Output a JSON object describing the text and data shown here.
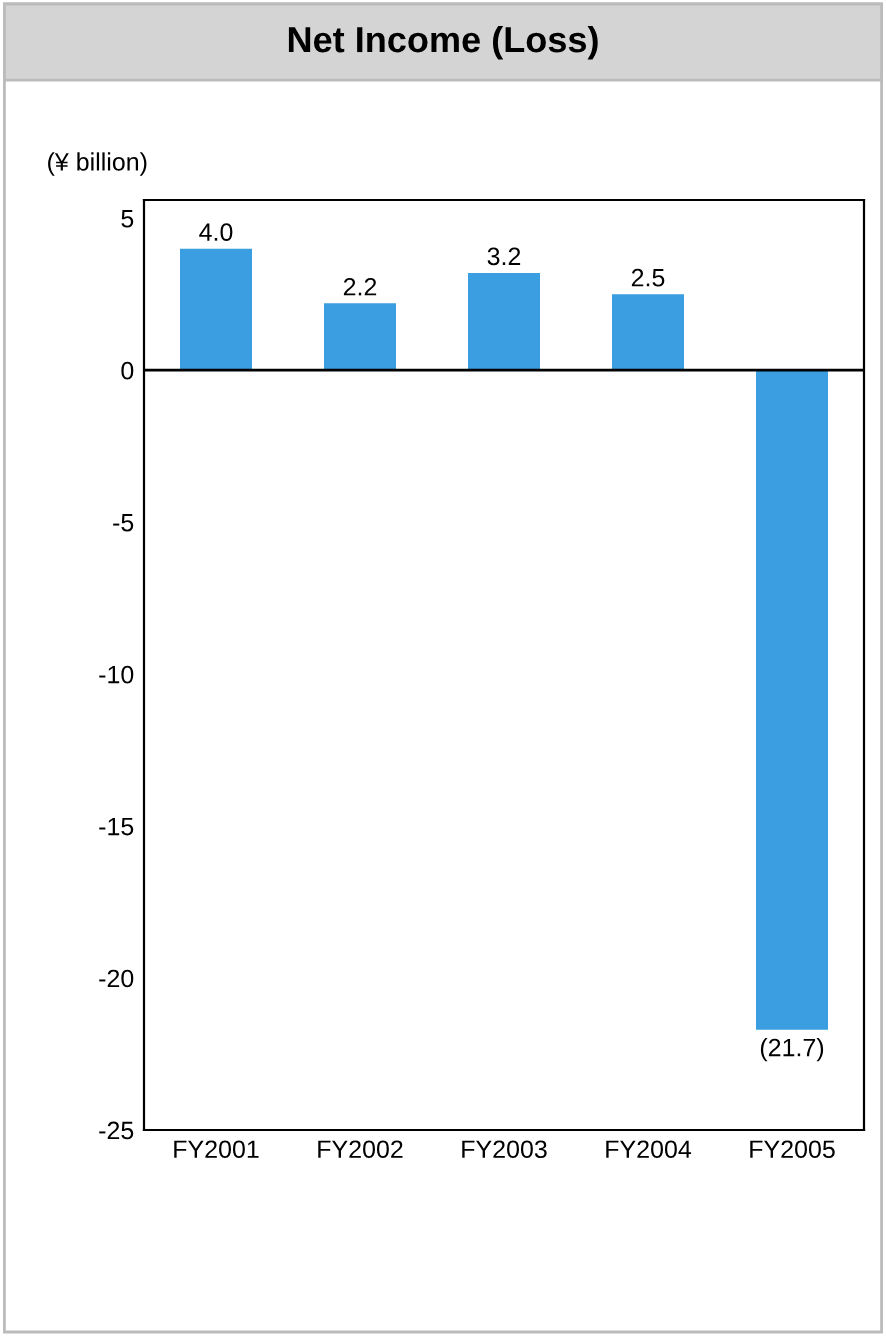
{
  "chart_data": {
    "type": "bar",
    "title": "Net Income (Loss)",
    "ylabel": "(¥ billion)",
    "categories": [
      "FY2001",
      "FY2002",
      "FY2003",
      "FY2004",
      "FY2005"
    ],
    "values": [
      4.0,
      2.2,
      3.2,
      2.5,
      -21.7
    ],
    "value_labels": [
      "4.0",
      "2.2",
      "3.2",
      "2.5",
      "(21.7)"
    ],
    "color": "#3a9ee0",
    "ylim": [
      -25,
      5.6
    ],
    "yticks": [
      -25,
      -20,
      -15,
      -10,
      -5,
      0,
      5
    ],
    "ref_lines": [
      {
        "axis": "y",
        "value": 0,
        "color": "#000000"
      }
    ],
    "grid": false,
    "legend": false
  }
}
